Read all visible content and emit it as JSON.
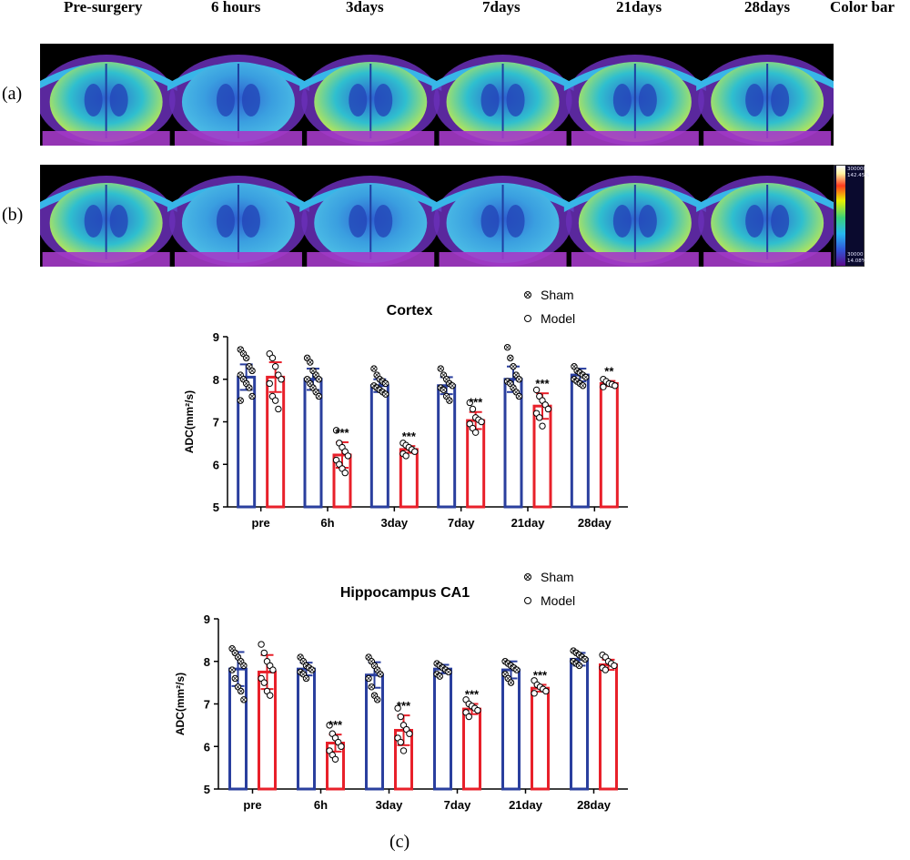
{
  "column_headers": [
    "Pre-surgery",
    "6 hours",
    "3days",
    "7days",
    "21days",
    "28days",
    "Color bar"
  ],
  "row_labels": [
    "(a)",
    "(b)"
  ],
  "panel_c_label": "(c)",
  "colorbar": {
    "top_value": "300000",
    "top_percent": "142.45%",
    "bottom_value": "30000",
    "bottom_percent": "14.08%"
  },
  "mri_rows": [
    {
      "brightness": [
        0.85,
        0.55,
        0.75,
        0.75,
        0.75,
        0.7
      ]
    },
    {
      "brightness": [
        0.85,
        0.2,
        0.45,
        0.35,
        0.7,
        0.65
      ]
    }
  ],
  "colors": {
    "sham": "#2a3f9e",
    "model": "#e8202a"
  },
  "chart_data": [
    {
      "type": "bar",
      "title": "Cortex",
      "ylabel": "ADC(mm²/s)",
      "ylim": [
        5,
        9
      ],
      "yticks": [
        "5",
        "6",
        "7",
        "8",
        "9"
      ],
      "categories": [
        "pre",
        "6h",
        "3day",
        "7day",
        "21day",
        "28day"
      ],
      "legend": {
        "placement": "top-right",
        "sham_label": "Sham",
        "model_label": "Model"
      },
      "series": [
        {
          "name": "Sham",
          "values": [
            8.05,
            8.0,
            7.85,
            7.85,
            8.0,
            8.1
          ],
          "err": [
            0.3,
            0.25,
            0.15,
            0.2,
            0.3,
            0.15
          ],
          "points": [
            [
              8.7,
              8.6,
              8.5,
              8.3,
              8.2,
              8.1,
              8.0,
              7.9,
              7.8,
              7.6,
              7.5
            ],
            [
              8.5,
              8.4,
              8.2,
              8.1,
              8.0,
              8.0,
              7.9,
              7.8,
              7.7,
              7.6
            ],
            [
              8.25,
              8.1,
              8.0,
              7.95,
              7.9,
              7.85,
              7.8,
              7.75,
              7.7,
              7.65
            ],
            [
              8.25,
              8.1,
              8.0,
              7.9,
              7.85,
              7.8,
              7.75,
              7.6,
              7.5
            ],
            [
              8.75,
              8.5,
              8.3,
              8.1,
              8.0,
              7.95,
              7.9,
              7.8,
              7.7,
              7.6
            ],
            [
              8.3,
              8.2,
              8.15,
              8.1,
              8.05,
              8.0,
              7.95,
              7.9,
              7.85
            ]
          ]
        },
        {
          "name": "Model",
          "values": [
            8.05,
            6.22,
            6.35,
            7.03,
            7.37,
            7.9
          ],
          "err": [
            0.35,
            0.3,
            0.08,
            0.2,
            0.3,
            0.06
          ],
          "points": [
            [
              8.6,
              8.5,
              8.3,
              8.1,
              8.0,
              7.9,
              7.6,
              7.5,
              7.3
            ],
            [
              6.8,
              6.5,
              6.4,
              6.3,
              6.2,
              6.1,
              6.0,
              5.9,
              5.8
            ],
            [
              6.5,
              6.45,
              6.4,
              6.35,
              6.3,
              6.25,
              6.2
            ],
            [
              7.45,
              7.3,
              7.1,
              7.05,
              7.0,
              6.95,
              6.85,
              6.75
            ],
            [
              7.75,
              7.6,
              7.5,
              7.4,
              7.3,
              7.2,
              7.1,
              6.9
            ],
            [
              8.0,
              7.95,
              7.9,
              7.88,
              7.85,
              7.82
            ]
          ]
        }
      ],
      "annotations": [
        "",
        "***",
        "***",
        "***",
        "***",
        "**"
      ]
    },
    {
      "type": "bar",
      "title": "Hippocampus CA1",
      "ylabel": "ADC(mm²/s)",
      "ylim": [
        5,
        9
      ],
      "yticks": [
        "5",
        "6",
        "7",
        "8",
        "9"
      ],
      "categories": [
        "pre",
        "6h",
        "3day",
        "7day",
        "21day",
        "28day"
      ],
      "legend": {
        "placement": "top-right",
        "sham_label": "Sham",
        "model_label": "Model"
      },
      "series": [
        {
          "name": "Sham",
          "values": [
            7.82,
            7.82,
            7.68,
            7.82,
            7.8,
            8.05
          ],
          "err": [
            0.4,
            0.15,
            0.3,
            0.1,
            0.2,
            0.15
          ],
          "points": [
            [
              8.3,
              8.2,
              8.1,
              8.0,
              7.9,
              7.8,
              7.6,
              7.4,
              7.3,
              7.1
            ],
            [
              8.1,
              8.0,
              7.9,
              7.85,
              7.8,
              7.75,
              7.7,
              7.6
            ],
            [
              8.1,
              8.0,
              7.9,
              7.8,
              7.7,
              7.6,
              7.4,
              7.2,
              7.1
            ],
            [
              7.95,
              7.9,
              7.85,
              7.8,
              7.75,
              7.7,
              7.65
            ],
            [
              8.0,
              7.95,
              7.9,
              7.85,
              7.8,
              7.7,
              7.6,
              7.5
            ],
            [
              8.25,
              8.2,
              8.15,
              8.1,
              8.05,
              8.0,
              7.95,
              7.9
            ]
          ]
        },
        {
          "name": "Model",
          "values": [
            7.75,
            6.08,
            6.38,
            6.88,
            7.37,
            7.92
          ],
          "err": [
            0.4,
            0.2,
            0.35,
            0.12,
            0.08,
            0.12
          ],
          "points": [
            [
              8.4,
              8.2,
              8.0,
              7.9,
              7.8,
              7.6,
              7.5,
              7.3,
              7.2
            ],
            [
              6.5,
              6.3,
              6.2,
              6.1,
              6.0,
              5.9,
              5.8,
              5.7
            ],
            [
              6.9,
              6.7,
              6.5,
              6.4,
              6.3,
              6.2,
              6.1,
              5.9
            ],
            [
              7.1,
              7.0,
              6.95,
              6.9,
              6.85,
              6.8,
              6.7
            ],
            [
              7.55,
              7.45,
              7.4,
              7.35,
              7.3,
              7.25
            ],
            [
              8.15,
              8.1,
              8.0,
              7.95,
              7.9,
              7.85,
              7.8
            ]
          ]
        }
      ],
      "annotations": [
        "",
        "***",
        "***",
        "***",
        "***",
        ""
      ]
    }
  ]
}
